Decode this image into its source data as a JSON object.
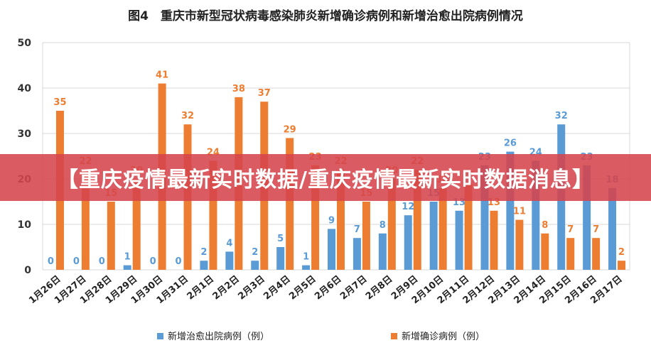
{
  "banner": {
    "text": "【重庆疫情最新实时数据/重庆疫情最新实时数据消息】"
  },
  "colors": {
    "series1": "#5b9bd5",
    "series2": "#ed7d31",
    "banner": "#d6444c",
    "grid": "#d9d9d9"
  },
  "chart_data": {
    "type": "bar",
    "title": "图4　重庆市新型冠状病毒感染肺炎新增确诊病例和新增治愈出院病例情况",
    "xlabel": "",
    "ylabel": "",
    "ylim": [
      0,
      50
    ],
    "yticks": [
      0,
      10,
      20,
      30,
      40,
      50
    ],
    "grid": "horizontal",
    "legend_position": "bottom",
    "categories": [
      "1月26日",
      "1月27日",
      "1月28日",
      "1月29日",
      "1月30日",
      "1月31日",
      "2月1日",
      "2月2日",
      "2月3日",
      "2月4日",
      "2月5日",
      "2月6日",
      "2月7日",
      "2月8日",
      "2月9日",
      "2月10日",
      "2月11日",
      "2月12日",
      "2月13日",
      "2月14日",
      "2月15日",
      "2月16日",
      "2月17日"
    ],
    "series": [
      {
        "name": "新增治愈出院病例（例）",
        "color": "#5b9bd5",
        "values": [
          0,
          0,
          0,
          1,
          0,
          0,
          2,
          4,
          2,
          5,
          1,
          9,
          7,
          8,
          12,
          15,
          13,
          23,
          26,
          24,
          32,
          23,
          18
        ]
      },
      {
        "name": "新增确诊病例（例）",
        "color": "#ed7d31",
        "values": [
          35,
          22,
          15,
          20,
          41,
          32,
          24,
          38,
          37,
          29,
          23,
          22,
          15,
          20,
          22,
          18,
          19,
          13,
          11,
          8,
          7,
          7,
          2
        ]
      }
    ]
  }
}
